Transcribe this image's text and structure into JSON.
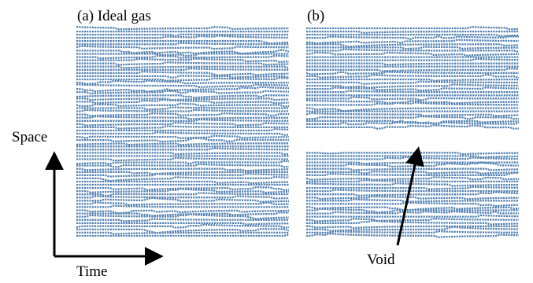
{
  "panels": [
    {
      "id": "a",
      "title": "(a) Ideal gas",
      "has_void": false
    },
    {
      "id": "b",
      "title": "(b)",
      "has_void": true
    }
  ],
  "axes": {
    "vertical_label": "Space",
    "horizontal_label": "Time"
  },
  "annotation": {
    "label": "Void"
  },
  "colors": {
    "trajectory": "#4f7fb0",
    "arrow": "#000000",
    "background": "#ffffff"
  }
}
